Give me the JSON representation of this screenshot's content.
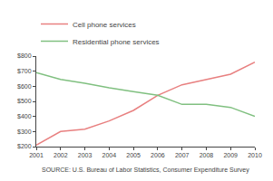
{
  "chart_data": {
    "type": "line",
    "x": [
      2001,
      2002,
      2003,
      2004,
      2005,
      2006,
      2007,
      2008,
      2009,
      2010
    ],
    "series": [
      {
        "name": "Cell phone services",
        "color": "#e88080",
        "values": [
          210,
          300,
          315,
          370,
          440,
          540,
          610,
          645,
          680,
          760
        ]
      },
      {
        "name": "Residential phone services",
        "color": "#80c080",
        "values": [
          690,
          645,
          620,
          590,
          565,
          540,
          480,
          480,
          460,
          400
        ]
      }
    ],
    "xlim": [
      2001,
      2010
    ],
    "xticks": [
      2001,
      2002,
      2003,
      2004,
      2005,
      2006,
      2007,
      2008,
      2009,
      2010
    ],
    "ylim": [
      200,
      800
    ],
    "yticks": [
      {
        "value": 200,
        "label": "$200"
      },
      {
        "value": 300,
        "label": "$300"
      },
      {
        "value": 400,
        "label": "$400"
      },
      {
        "value": 500,
        "label": "$500"
      },
      {
        "value": 600,
        "label": "$600"
      },
      {
        "value": 700,
        "label": "$700"
      },
      {
        "value": 800,
        "label": "$800"
      }
    ],
    "annotations": [
      "SOURCE: U.S. Bureau of Labor Statistics, Consumer Expenditure Survey"
    ],
    "grid": false,
    "legend": "upper left"
  }
}
